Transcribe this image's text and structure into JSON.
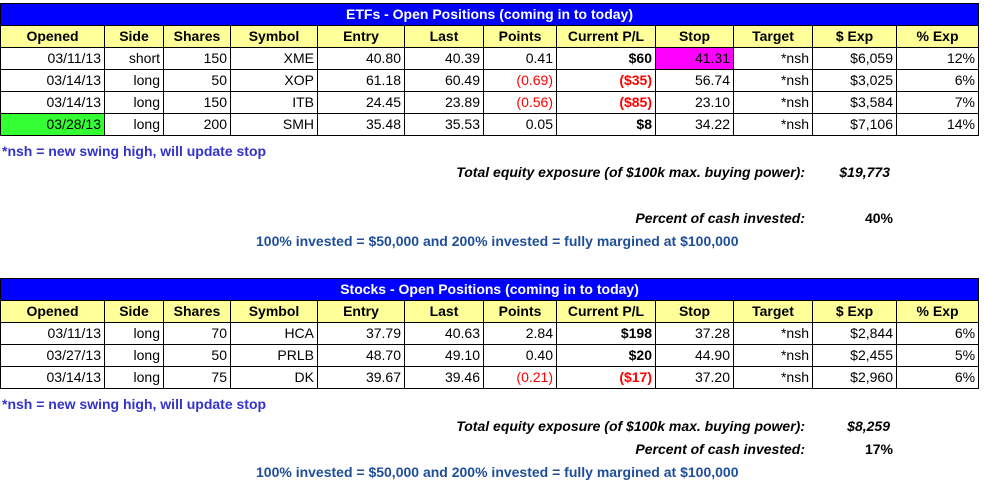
{
  "columns": [
    "Opened",
    "Side",
    "Shares",
    "Symbol",
    "Entry",
    "Last",
    "Points",
    "Current P/L",
    "Stop",
    "Target",
    "$ Exp",
    "% Exp"
  ],
  "etf": {
    "title": "ETFs - Open Positions (coming in to today)",
    "rows": [
      {
        "opened": "03/11/13",
        "side": "short",
        "shares": "150",
        "symbol": "XME",
        "entry": "40.80",
        "last": "40.39",
        "points": "0.41",
        "pl": "$60",
        "stop": "41.31",
        "target": "*nsh",
        "exp": "$6,059",
        "pct": "12%"
      },
      {
        "opened": "03/14/13",
        "side": "long",
        "shares": "50",
        "symbol": "XOP",
        "entry": "61.18",
        "last": "60.49",
        "points": "(0.69)",
        "pl": "($35)",
        "stop": "56.74",
        "target": "*nsh",
        "exp": "$3,025",
        "pct": "6%"
      },
      {
        "opened": "03/14/13",
        "side": "long",
        "shares": "150",
        "symbol": "ITB",
        "entry": "24.45",
        "last": "23.89",
        "points": "(0.56)",
        "pl": "($85)",
        "stop": "23.10",
        "target": "*nsh",
        "exp": "$3,584",
        "pct": "7%"
      },
      {
        "opened": "03/28/13",
        "side": "long",
        "shares": "200",
        "symbol": "SMH",
        "entry": "35.48",
        "last": "35.53",
        "points": "0.05",
        "pl": "$8",
        "stop": "34.22",
        "target": "*nsh",
        "exp": "$7,106",
        "pct": "14%"
      }
    ],
    "note": "*nsh = new swing high, will update stop",
    "total_label": "Total equity exposure (of $100k max. buying power):",
    "total_value": "$19,773",
    "pct_label": "Percent of cash invested:",
    "pct_value": "40%",
    "invest_note": "100% invested = $50,000 and 200% invested = fully margined at $100,000"
  },
  "stocks": {
    "title": "Stocks - Open Positions (coming in to today)",
    "rows": [
      {
        "opened": "03/11/13",
        "side": "long",
        "shares": "70",
        "symbol": "HCA",
        "entry": "37.79",
        "last": "40.63",
        "points": "2.84",
        "pl": "$198",
        "stop": "37.28",
        "target": "*nsh",
        "exp": "$2,844",
        "pct": "6%"
      },
      {
        "opened": "03/27/13",
        "side": "long",
        "shares": "50",
        "symbol": "PRLB",
        "entry": "48.70",
        "last": "49.10",
        "points": "0.40",
        "pl": "$20",
        "stop": "44.90",
        "target": "*nsh",
        "exp": "$2,455",
        "pct": "5%"
      },
      {
        "opened": "03/14/13",
        "side": "long",
        "shares": "75",
        "symbol": "DK",
        "entry": "39.67",
        "last": "39.46",
        "points": "(0.21)",
        "pl": "($17)",
        "stop": "37.20",
        "target": "*nsh",
        "exp": "$2,960",
        "pct": "6%"
      }
    ],
    "note": "*nsh = new swing high, will update stop",
    "total_label": "Total equity exposure (of $100k max. buying power):",
    "total_value": "$8,259",
    "pct_label": "Percent of cash invested:",
    "pct_value": "17%",
    "invest_note": "100% invested = $50,000 and 200% invested = fully margined at $100,000"
  },
  "colors": {
    "title_bg": "#0000ff",
    "header_bg": "#ffff99",
    "stop_highlight": "#ff00ff",
    "opened_highlight": "#33ff33",
    "negative": "#ff0000",
    "note": "#3333cc"
  }
}
